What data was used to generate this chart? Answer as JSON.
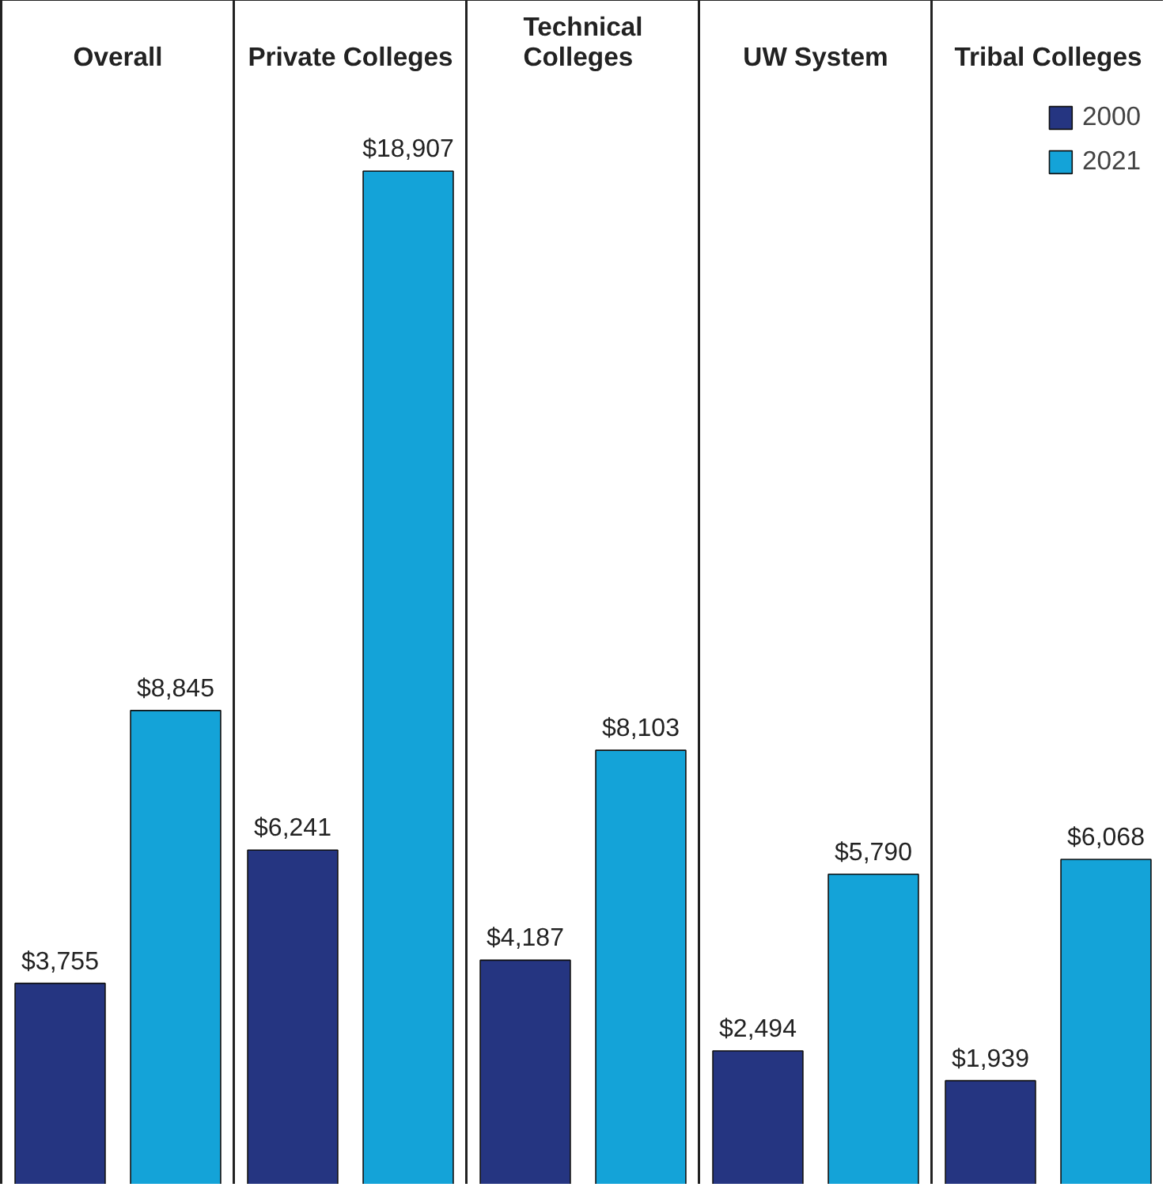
{
  "chart_data": {
    "type": "bar",
    "categories": [
      "Overall",
      "Private Colleges",
      "Technical Colleges",
      "UW System",
      "Tribal Colleges"
    ],
    "series": [
      {
        "name": "2000",
        "color": "#253581",
        "values": [
          3755,
          6241,
          4187,
          2494,
          1939
        ],
        "value_labels": [
          "$3,755",
          "$6,241",
          "$4,187",
          "$2,494",
          "$1,939"
        ]
      },
      {
        "name": "2021",
        "color": "#14a3d8",
        "values": [
          8845,
          18907,
          8103,
          5790,
          6068
        ],
        "value_labels": [
          "$8,845",
          "$18,907",
          "$8,103",
          "$5,790",
          "$6,068"
        ]
      }
    ],
    "legend": "top right",
    "grid": false
  }
}
